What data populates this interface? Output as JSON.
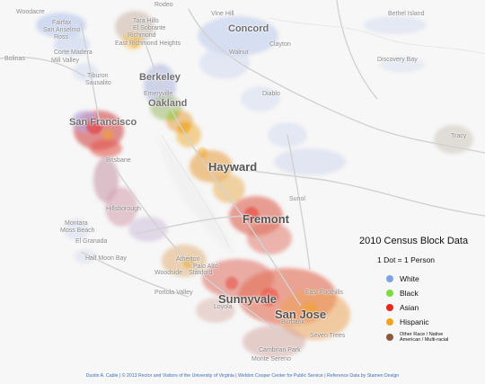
{
  "places": [
    {
      "label": "Woodacre",
      "size": "small"
    },
    {
      "label": "Fairfax",
      "size": "small"
    },
    {
      "label": "San Anselmo",
      "size": "small"
    },
    {
      "label": "Ross",
      "size": "small"
    },
    {
      "label": "Bolinas",
      "size": "small"
    },
    {
      "label": "Corte Madera",
      "size": "small"
    },
    {
      "label": "Mill Valley",
      "size": "small"
    },
    {
      "label": "Tiburon",
      "size": "small"
    },
    {
      "label": "Sausalito",
      "size": "small"
    },
    {
      "label": "Rodeo",
      "size": "small"
    },
    {
      "label": "Tara Hills",
      "size": "small"
    },
    {
      "label": "El Sobrante",
      "size": "small"
    },
    {
      "label": "Richmond",
      "size": "small"
    },
    {
      "label": "East Richmond Heights",
      "size": "small"
    },
    {
      "label": "Vine Hill",
      "size": "small"
    },
    {
      "label": "Concord",
      "size": "big"
    },
    {
      "label": "Clayton",
      "size": "small"
    },
    {
      "label": "Walnut",
      "size": "small"
    },
    {
      "label": "Bethel Island",
      "size": "small"
    },
    {
      "label": "Discovery Bay",
      "size": "small"
    },
    {
      "label": "Berkeley",
      "size": "big"
    },
    {
      "label": "Emeryville",
      "size": "small"
    },
    {
      "label": "Oakland",
      "size": "big"
    },
    {
      "label": "Diablo",
      "size": "small"
    },
    {
      "label": "San Francisco",
      "size": "big"
    },
    {
      "label": "Tracy",
      "size": "small"
    },
    {
      "label": "Brisbane",
      "size": "small"
    },
    {
      "label": "Hayward",
      "size": "large"
    },
    {
      "label": "Sunol",
      "size": "small"
    },
    {
      "label": "Fremont",
      "size": "large"
    },
    {
      "label": "Hillsborough",
      "size": "small"
    },
    {
      "label": "Montara",
      "size": "small"
    },
    {
      "label": "Moss Beach",
      "size": "small"
    },
    {
      "label": "El Granada",
      "size": "small"
    },
    {
      "label": "Half Moon Bay",
      "size": "small"
    },
    {
      "label": "Atherton",
      "size": "small"
    },
    {
      "label": "Palo Alto",
      "size": "small"
    },
    {
      "label": "Stanford",
      "size": "small"
    },
    {
      "label": "Woodside",
      "size": "small"
    },
    {
      "label": "Portola Valley",
      "size": "small"
    },
    {
      "label": "Sunnyvale",
      "size": "large"
    },
    {
      "label": "Loyola",
      "size": "small"
    },
    {
      "label": "San Jose",
      "size": "large"
    },
    {
      "label": "Burbank",
      "size": "small"
    },
    {
      "label": "East Foothills",
      "size": "small"
    },
    {
      "label": "Seven Trees",
      "size": "small"
    },
    {
      "label": "Cambrian Park",
      "size": "small"
    },
    {
      "label": "Monte Sereno",
      "size": "small"
    }
  ],
  "legend": {
    "title": "2010 Census Block Data",
    "subtitle": "1 Dot = 1 Person",
    "items": [
      {
        "label": "White",
        "color": "#7fa3e0"
      },
      {
        "label": "Black",
        "color": "#7cdc3c"
      },
      {
        "label": "Asian",
        "color": "#e8261c"
      },
      {
        "label": "Hispanic",
        "color": "#f2a51c"
      },
      {
        "label": "Other Race / Native American / Multi-racial",
        "color": "#8b5a3a"
      }
    ]
  },
  "credit": "Dustin A. Cable | © 2013 Rector and Visitors of the University of Virginia | Weldon Cooper Center for Public Service | Reference Data by Stamen Design"
}
